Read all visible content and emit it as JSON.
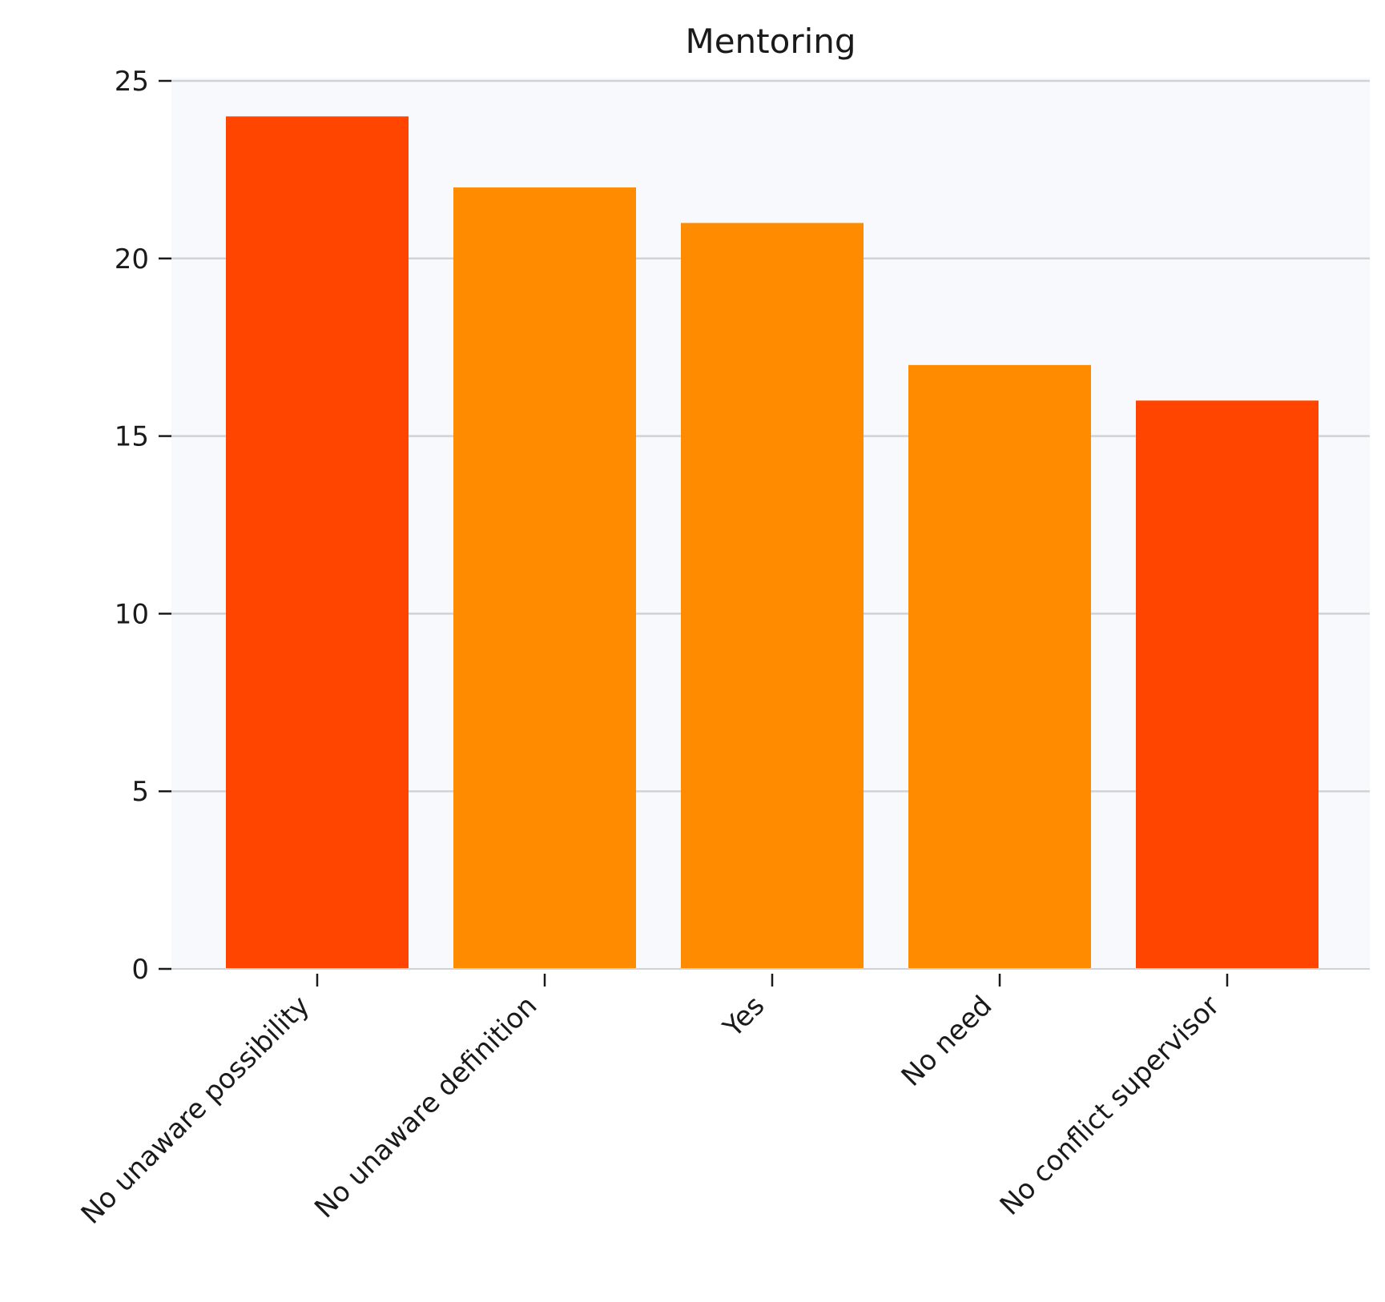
{
  "chart_data": {
    "type": "bar",
    "title": "Mentoring",
    "xlabel": "",
    "ylabel": "",
    "categories": [
      "No unaware possibility",
      "No unaware definition",
      "Yes",
      "No need",
      "No conflict supervisor"
    ],
    "values": [
      24,
      22,
      21,
      17,
      16
    ],
    "bar_colors": [
      "#FF4500",
      "#FF8C00",
      "#FF8C00",
      "#FF8C00",
      "#FF4500"
    ],
    "ylim": [
      0,
      25
    ],
    "yticks": [
      "0",
      "5",
      "10",
      "15",
      "20",
      "25"
    ],
    "grid": "horizontal",
    "plot_background": "#F8F9FC",
    "grid_color": "#CFD2D6",
    "legend": "none"
  }
}
